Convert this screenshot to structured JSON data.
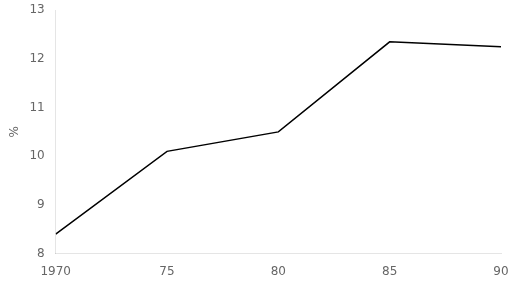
{
  "chart_data": {
    "type": "line",
    "x": [
      1970,
      1975,
      1980,
      1985,
      1990
    ],
    "values": [
      8.4,
      10.1,
      10.5,
      12.35,
      12.25
    ],
    "xlim": [
      1970,
      1990
    ],
    "ylim": [
      8,
      13
    ],
    "xticks": [
      1970,
      {
        "value": 1975,
        "label": "75"
      },
      {
        "value": 1980,
        "label": "80"
      },
      {
        "value": 1985,
        "label": "85"
      },
      {
        "value": 1990,
        "label": "90"
      }
    ],
    "yticks": [
      8,
      9,
      10,
      11,
      12,
      13
    ],
    "ylabel": "%",
    "color": "#000000",
    "grid": false
  }
}
